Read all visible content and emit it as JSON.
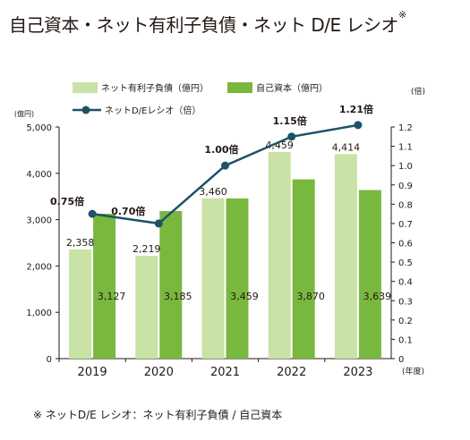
{
  "chart_data": {
    "type": "bar",
    "title": "自己資本・ネット有利子負債・ネット D/E レシオ",
    "title_mark": "※",
    "categories": [
      "2019",
      "2020",
      "2021",
      "2022",
      "2023"
    ],
    "x_unit": "(年度)",
    "left_axis": {
      "unit": "(億円)",
      "ylim": [
        0,
        5000
      ],
      "ticks": [
        "0",
        "1,000",
        "2,000",
        "3,000",
        "4,000",
        "5,000"
      ]
    },
    "right_axis": {
      "unit": "(倍)",
      "ylim": [
        0,
        1.2
      ],
      "ticks": [
        "0",
        "0.1",
        "0.2",
        "0.3",
        "0.4",
        "0.5",
        "0.6",
        "0.7",
        "0.8",
        "0.9",
        "1.0",
        "1.1",
        "1.2"
      ]
    },
    "series": [
      {
        "name": "ネット有利子負債（億円）",
        "kind": "bar",
        "axis": "left",
        "color": "#c9e2a5",
        "values": [
          2358,
          2219,
          3460,
          4459,
          4414
        ],
        "labels": [
          "2,358",
          "2,219",
          "3,460",
          "4,459",
          "4,414"
        ]
      },
      {
        "name": "自己資本（億円）",
        "kind": "bar",
        "axis": "left",
        "color": "#79b83e",
        "values": [
          3127,
          3185,
          3459,
          3870,
          3639
        ],
        "labels": [
          "3,127",
          "3,185",
          "3,459",
          "3,870",
          "3,639"
        ]
      },
      {
        "name": "ネットD/Eレシオ（倍）",
        "kind": "line",
        "axis": "right",
        "color": "#1d5268",
        "values": [
          0.75,
          0.7,
          1.0,
          1.15,
          1.21
        ],
        "labels": [
          "0.75倍",
          "0.70倍",
          "1.00倍",
          "1.15倍",
          "1.21倍"
        ]
      }
    ],
    "grid": false,
    "legend_position": "top",
    "footnote": "※ ネットD/E レシオ：ネット有利子負債 / 自己資本"
  }
}
